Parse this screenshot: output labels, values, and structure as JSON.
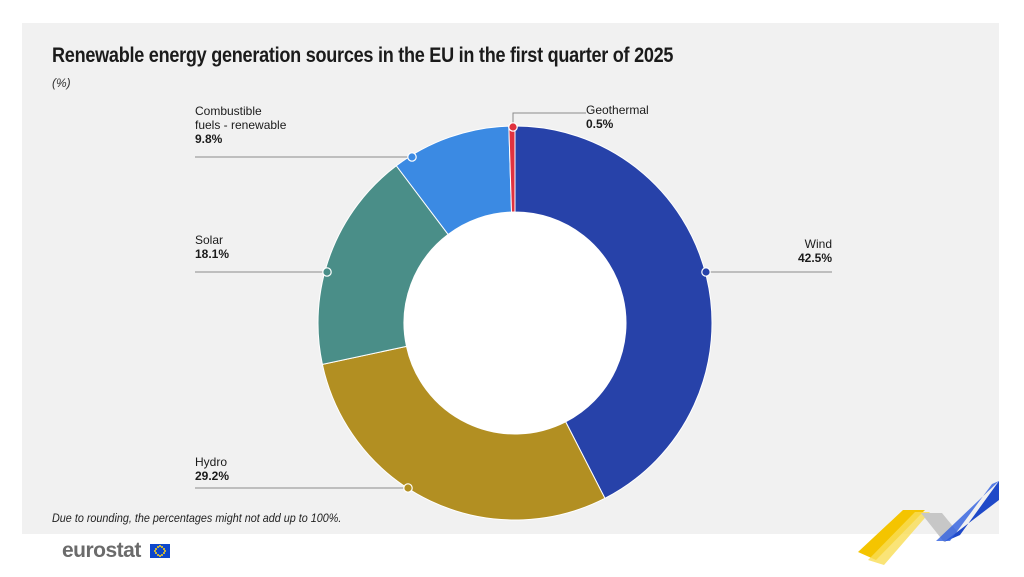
{
  "header": {
    "title": "Renewable energy generation sources in the EU in the first quarter of  2025",
    "unit": "(%)"
  },
  "footnote": "Due to rounding, the percentages might not add up to 100%.",
  "brand": {
    "logo_text": "eurostat"
  },
  "chart_data": {
    "type": "pie",
    "variant": "donut",
    "title": "Renewable energy generation sources in the EU in the first quarter of  2025",
    "unit": "(%)",
    "slices": [
      {
        "label": "Wind",
        "value": 42.5,
        "value_label": "42.5%",
        "color": "#2742a9"
      },
      {
        "label": "Hydro",
        "value": 29.2,
        "value_label": "29.2%",
        "color": "#b28f22"
      },
      {
        "label": "Solar",
        "value": 18.1,
        "value_label": "18.1%",
        "color": "#4a8e88"
      },
      {
        "label": "Combustible fuels - renewable",
        "label_lines": [
          "Combustible",
          "fuels - renewable"
        ],
        "value": 9.8,
        "value_label": "9.8%",
        "color": "#3b8ae3"
      },
      {
        "label": "Geothermal",
        "value": 0.5,
        "value_label": "0.5%",
        "color": "#e0323f"
      }
    ],
    "legend": "none"
  }
}
